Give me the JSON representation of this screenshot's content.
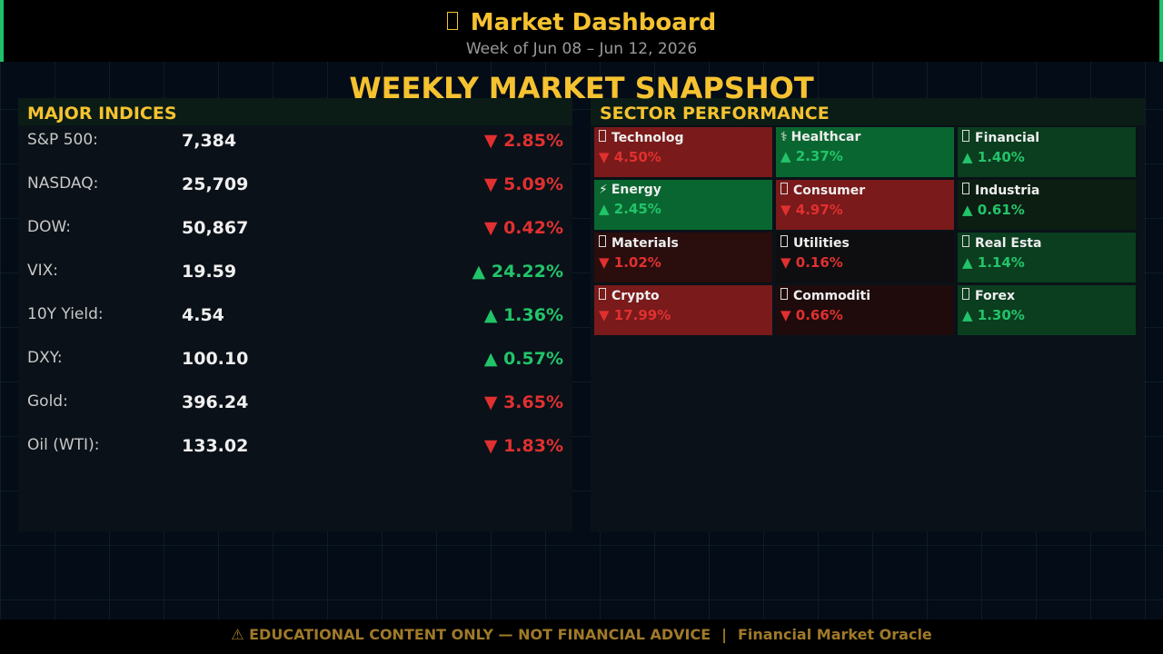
{
  "header": {
    "title": "Market Dashboard",
    "subtitle": "Week of Jun 08 – Jun 12, 2026"
  },
  "heading": "WEEKLY MARKET SNAPSHOT",
  "indices": {
    "title": "MAJOR INDICES",
    "rows": [
      {
        "label": "S&P 500:",
        "value": "7,384",
        "change": "▼ 2.85%"
      },
      {
        "label": "NASDAQ:",
        "value": "25,709",
        "change": "▼ 5.09%"
      },
      {
        "label": "DOW:",
        "value": "50,867",
        "change": "▼ 0.42%"
      },
      {
        "label": "VIX:",
        "value": "19.59",
        "change": "▲ 24.22%"
      },
      {
        "label": "10Y Yield:",
        "value": "4.54",
        "change": "▲ 1.36%"
      },
      {
        "label": "DXY:",
        "value": "100.10",
        "change": "▲ 0.57%"
      },
      {
        "label": "Gold:",
        "value": "396.24",
        "change": "▼ 3.65%"
      },
      {
        "label": "Oil (WTI):",
        "value": "133.02",
        "change": "▼ 1.83%"
      }
    ]
  },
  "sectors": {
    "title": "SECTOR PERFORMANCE",
    "tiles": [
      {
        "name": "Technolog",
        "change": "▼ 4.50%",
        "color": "#7a1a1a"
      },
      {
        "icon": "⚕",
        "name": "Healthcar",
        "change": "▲ 2.37%",
        "color": "#0a6630"
      },
      {
        "name": "Financial",
        "change": "▲ 1.40%",
        "color": "#0b3d1f"
      },
      {
        "icon": "⚡",
        "name": "Energy",
        "change": "▲ 2.45%",
        "color": "#0a6630"
      },
      {
        "name": "Consumer",
        "change": "▼ 4.97%",
        "color": "#7a1a1a"
      },
      {
        "name": "Industria",
        "change": "▲ 0.61%",
        "color": "#0c1e12"
      },
      {
        "name": "Materials",
        "change": "▼ 1.02%",
        "color": "#2a0d0d"
      },
      {
        "name": "Utilities",
        "change": "▼ 0.16%",
        "color": "#0e0e10"
      },
      {
        "name": "Real Esta",
        "change": "▲ 1.14%",
        "color": "#0b3d1f"
      },
      {
        "name": "Crypto",
        "change": "▼ 17.99%",
        "color": "#7a1a1a"
      },
      {
        "name": "Commoditi",
        "change": "▼ 0.66%",
        "color": "#1f0b0b"
      },
      {
        "name": "Forex",
        "change": "▲ 1.30%",
        "color": "#0b3d1f"
      }
    ]
  },
  "footer": {
    "notice": "⚠  EDUCATIONAL CONTENT ONLY — NOT FINANCIAL ADVICE",
    "brand": "Financial Market Oracle"
  }
}
